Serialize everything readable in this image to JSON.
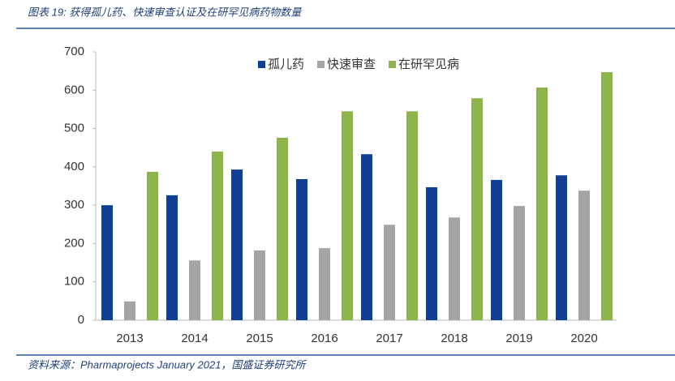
{
  "chart_data": {
    "type": "bar",
    "title": "图表 19: 获得孤儿药、快速审查认证及在研罕见病药物数量",
    "source": "资料来源：Pharmaprojects January 2021，国盛证券研究所",
    "categories": [
      "2013",
      "2014",
      "2015",
      "2016",
      "2017",
      "2018",
      "2019",
      "2020"
    ],
    "series": [
      {
        "name": "孤儿药",
        "color": "#0e3f94",
        "values": [
          300,
          326,
          393,
          368,
          433,
          347,
          366,
          378
        ]
      },
      {
        "name": "快速审查",
        "color": "#a5a5a5",
        "values": [
          49,
          156,
          182,
          188,
          249,
          268,
          298,
          338
        ]
      },
      {
        "name": "在研罕见病",
        "color": "#8db54b",
        "values": [
          387,
          440,
          476,
          545,
          545,
          579,
          607,
          647
        ]
      }
    ],
    "ylim": [
      0,
      700
    ],
    "yticks": [
      0,
      100,
      200,
      300,
      400,
      500,
      600,
      700
    ],
    "grid": false,
    "legend": "top"
  }
}
